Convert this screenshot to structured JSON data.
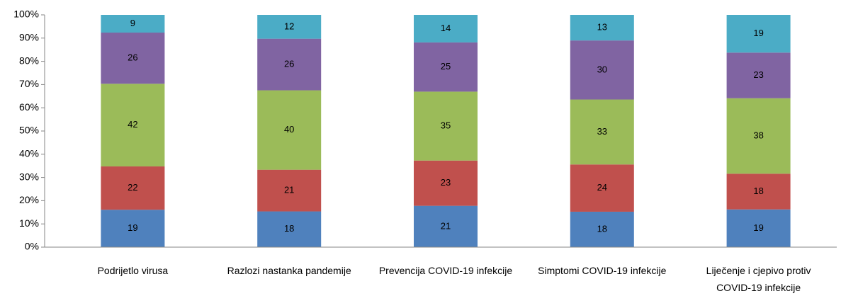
{
  "chart_data": {
    "type": "bar",
    "stacking": "percent",
    "categories": [
      "Podrijetlo virusa",
      "Razlozi nastanka pandemije",
      "Prevencija COVID-19 infekcije",
      "Simptomi COVID-19 infekcije",
      "Liječenje i cjepivo protiv COVID-19 infekcije"
    ],
    "series": [
      {
        "color": "#4f81bd",
        "values": [
          19,
          18,
          21,
          18,
          19
        ]
      },
      {
        "color": "#c0504d",
        "values": [
          22,
          21,
          23,
          24,
          18
        ]
      },
      {
        "color": "#9bbb59",
        "values": [
          42,
          40,
          35,
          33,
          38
        ]
      },
      {
        "color": "#8064a2",
        "values": [
          26,
          26,
          25,
          30,
          23
        ]
      },
      {
        "color": "#4bacc6",
        "values": [
          9,
          12,
          14,
          13,
          19
        ]
      }
    ],
    "ylim": [
      0,
      100
    ],
    "yticks": [
      {
        "value": 0,
        "label": "0%"
      },
      {
        "value": 10,
        "label": "10%"
      },
      {
        "value": 20,
        "label": "20%"
      },
      {
        "value": 30,
        "label": "30%"
      },
      {
        "value": 40,
        "label": "40%"
      },
      {
        "value": 50,
        "label": "50%"
      },
      {
        "value": 60,
        "label": "60%"
      },
      {
        "value": 70,
        "label": "70%"
      },
      {
        "value": 80,
        "label": "80%"
      },
      {
        "value": 90,
        "label": "90%"
      },
      {
        "value": 100,
        "label": "100%"
      }
    ],
    "grid": false
  }
}
